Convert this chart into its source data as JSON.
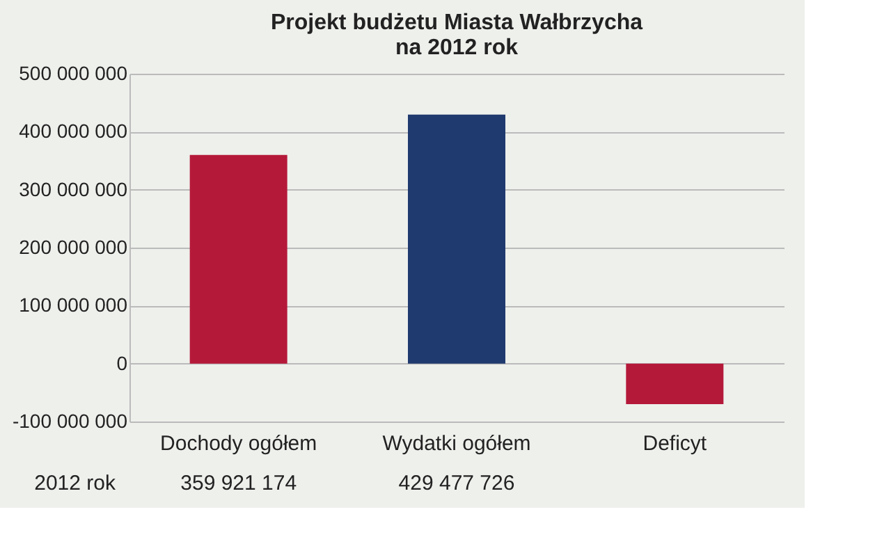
{
  "chart_data": {
    "type": "bar",
    "title": "Projekt budżetu Miasta Wałbrzycha\nna 2012 rok",
    "categories": [
      "Dochody ogółem",
      "Wydatki ogółem",
      "Deficyt"
    ],
    "series": [
      {
        "name": "2012 rok",
        "colors": [
          "#b5193a",
          "#1f3a6e",
          "#b5193a"
        ],
        "values": [
          359921174,
          429477726,
          -70000000
        ],
        "value_labels": [
          "359 921 174",
          "429 477 726",
          null
        ]
      }
    ],
    "ylim": [
      -100000000,
      500000000
    ],
    "yticks": [
      {
        "value": -100000000,
        "label": "-100 000 000"
      },
      {
        "value": 0,
        "label": "0"
      },
      {
        "value": 100000000,
        "label": "100 000 000"
      },
      {
        "value": 200000000,
        "label": "200 000 000"
      },
      {
        "value": 300000000,
        "label": "300 000 000"
      },
      {
        "value": 400000000,
        "label": "400 000 000"
      },
      {
        "value": 500000000,
        "label": "500 000 000"
      }
    ],
    "grid": "y",
    "legend": false
  }
}
